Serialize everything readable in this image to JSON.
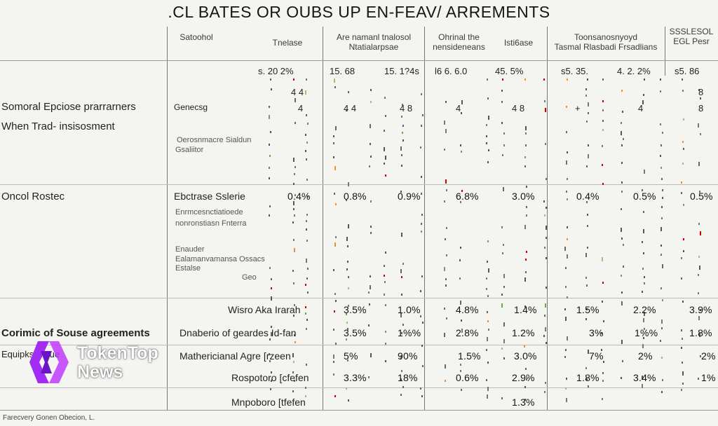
{
  "title": ".CL BATES OR OUBS UP EN-FEAV/ ARREMENTS",
  "headers": {
    "c1": "Satoohol",
    "c2": "Tnelase",
    "c3": "Are namanl tnalosol\nNtatialarpsae",
    "c4": "Ohrinal the\nnensideneans",
    "c5": "Isti6ase",
    "c6": "Toonsanosnyoyd\nTasmal Rlasbadi Frsadlians",
    "c7": "SSSLESOL\nEGL Pesr"
  },
  "toprow": [
    "s. 20 2%",
    "15. 68",
    "15. 1?4s",
    "l6 6. 6.0",
    "45. 5%",
    "s5. 35.",
    "4. 2. 2%",
    "s5. 86"
  ],
  "sections": {
    "s1a": "Somoral Epciose prarrarners",
    "s1b": "When Trad- insisosment",
    "s2": "Oncol Rostec",
    "s3": "Corimic of Souse agreements",
    "s4": "Equipks Etsue"
  },
  "labels": {
    "l1": "Genecsg",
    "l2a": "Oerosnmacre Sialdun",
    "l2b": "Gsaliitor",
    "l3": "Ebctrase Sslerie",
    "l4a": "Enrmcesnctiatioede",
    "l4b": "nonronstiasn Fnterra",
    "l5a": "Enauder",
    "l5b": "Ealamanvamansa Ossacs",
    "l5c": "Estalse",
    "l5d": "Geo",
    "l6": "Wisro Aka Irarah",
    "l7": "Dnaberio of geardes Id-fan",
    "l8": "Mathericianal Agre [rzeen",
    "l9": "Rospotoro [cfefen",
    "l10": "Mnpoboro [tfefen"
  },
  "rows": {
    "r1": [
      "0.4%",
      "0.8%",
      "0.9%",
      "6.8%",
      "3.0%",
      "0.4%",
      "0.5%",
      "0.5%"
    ],
    "r2": [
      "3.5%",
      "1.0%",
      "4.8%",
      "1.4%",
      "1.5%",
      "2.2%",
      "3.9%"
    ],
    "r3": [
      "3.5%",
      "1%%",
      "2.8%",
      "1.2%",
      "3%",
      "1%%",
      "1.8%"
    ],
    "r4": [
      "5%",
      "90%",
      "1.5%",
      "3.0%",
      "7%",
      "2%",
      "2%"
    ],
    "r5": [
      "3.3%",
      "18%",
      "0.6%",
      "2.9%",
      "1.8%",
      "3.4%",
      "1%"
    ],
    "r6": [
      "1.3%"
    ]
  },
  "small_marks": [
    "4 4",
    "4",
    "4 4",
    "4 8",
    "4",
    "4 8",
    "+",
    "4",
    "8",
    "8"
  ],
  "watermark": {
    "line1": "TokenTop",
    "line2": "News"
  },
  "footer": "Farecvery Gonen Obecion, L.",
  "colors": {
    "accent": "#9b2cf0",
    "background": "#f4f4f1",
    "grid": "#777777"
  }
}
